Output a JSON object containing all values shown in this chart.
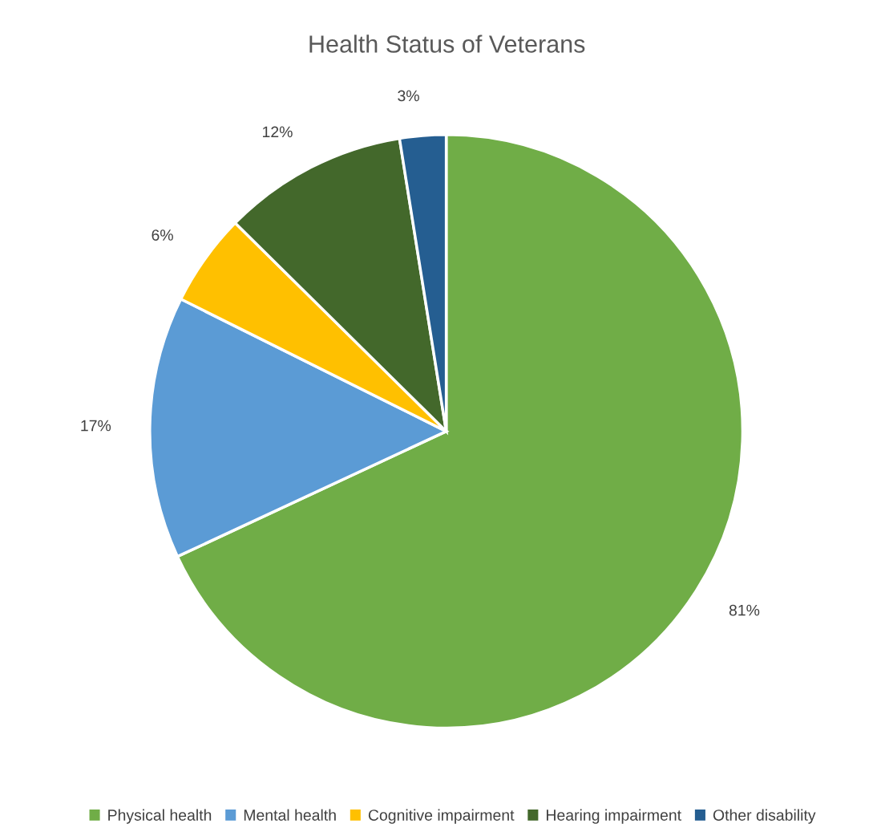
{
  "chart_data": {
    "type": "pie",
    "title": "Health Status of Veterans",
    "categories": [
      "Physical health",
      "Mental health",
      "Cognitive impairment",
      "Hearing impairment",
      "Other disability"
    ],
    "values": [
      81,
      17,
      6,
      12,
      3
    ],
    "colors": [
      "#70ad47",
      "#5b9bd5",
      "#ffc000",
      "#43682b",
      "#255e91"
    ],
    "value_labels": [
      "81%",
      "17%",
      "6%",
      "12%",
      "3%"
    ],
    "legend": "bottom"
  }
}
